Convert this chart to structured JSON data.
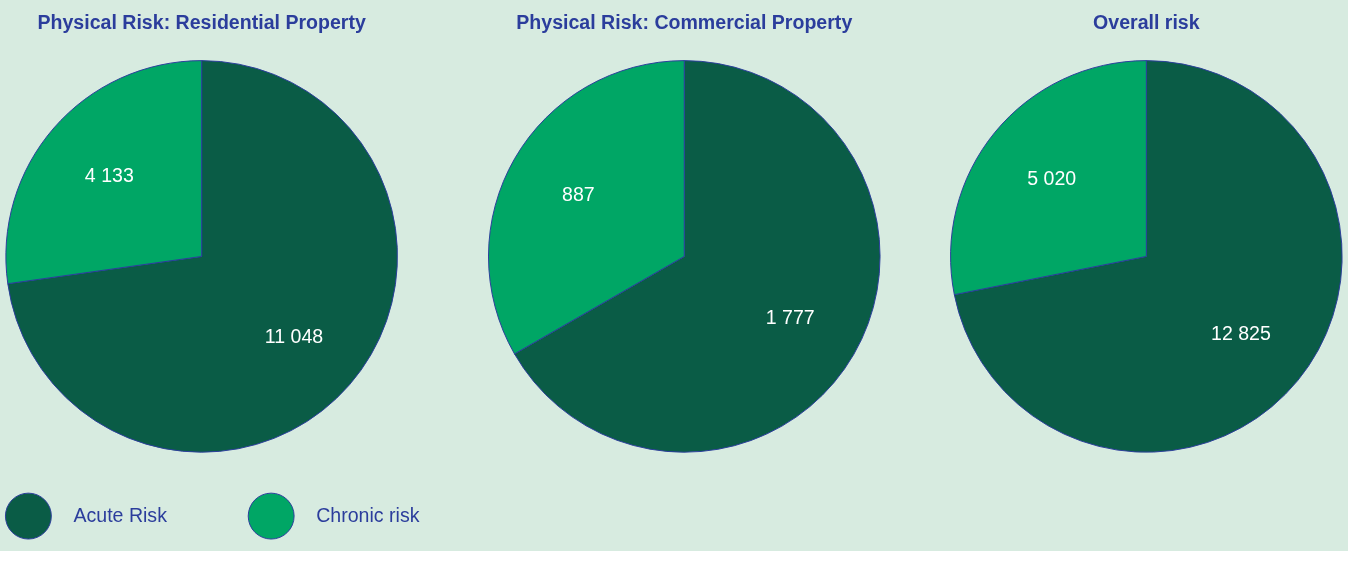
{
  "chart_data": [
    {
      "type": "pie",
      "title": "Physical Risk: Residential Property",
      "categories": [
        "Acute Risk",
        "Chronic risk"
      ],
      "values": [
        11048,
        4133
      ],
      "value_labels": [
        "11 048",
        "4 133"
      ],
      "colors": [
        "#0a5c46",
        "#00a665"
      ],
      "legend": "bottom"
    },
    {
      "type": "pie",
      "title": "Physical Risk: Commercial Property",
      "categories": [
        null,
        null
      ],
      "values": [
        1777,
        887
      ],
      "value_labels": [
        "1 777",
        "887"
      ],
      "colors": [
        "#0a5c46",
        "#00a665"
      ]
    },
    {
      "type": "pie",
      "title": "Overall risk",
      "categories": [
        null,
        null
      ],
      "values": [
        12825,
        5020
      ],
      "value_labels": [
        "12 825",
        "5 020"
      ],
      "colors": [
        "#0a5c46",
        "#00a665"
      ]
    }
  ]
}
